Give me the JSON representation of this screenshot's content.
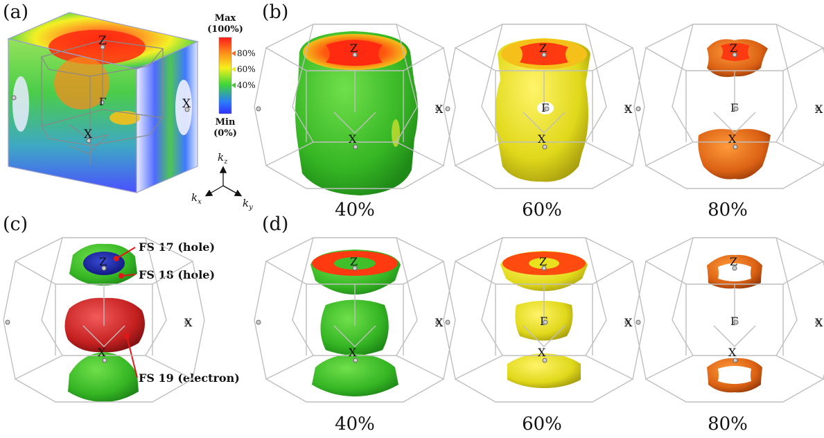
{
  "panels": {
    "a": "(a)",
    "b": "(b)",
    "c": "(c)",
    "d": "(d)"
  },
  "colorbar": {
    "max_label": "Max",
    "max_pct": "(100%)",
    "min_label": "Min",
    "min_pct": "(0%)",
    "ticks": [
      "80%",
      "60%",
      "40%"
    ],
    "tick_colors": [
      "#ff6a1a",
      "#f2ea1a",
      "#3ccc2a"
    ],
    "gradient": [
      "#ff1a1a",
      "#ff8c1a",
      "#f5f01a",
      "#3dd63a",
      "#2a7bff",
      "#3030ff"
    ]
  },
  "points": {
    "z": "Z",
    "gamma": "Γ",
    "x": "X"
  },
  "axes": {
    "kz": "k",
    "kz_sub": "z",
    "kx": "k",
    "kx_sub": "x",
    "ky": "k",
    "ky_sub": "y"
  },
  "row_b_labels": [
    "40%",
    "60%",
    "80%"
  ],
  "row_d_labels": [
    "40%",
    "60%",
    "80%"
  ],
  "fermi_surfaces": [
    {
      "label": "FS 17 (hole)",
      "color": "#1e2aa8"
    },
    {
      "label": "FS 18 (hole)",
      "color": "#35b52a"
    },
    {
      "label": "FS 19 (electron)",
      "color": "#c42020"
    }
  ],
  "surface_colors": {
    "green": "#3fbf2a",
    "yellow": "#e9e11e",
    "orange": "#e06a14",
    "hot": "#ff3a10",
    "bz_line": "#bfbfbf",
    "callout": "#e01818"
  }
}
